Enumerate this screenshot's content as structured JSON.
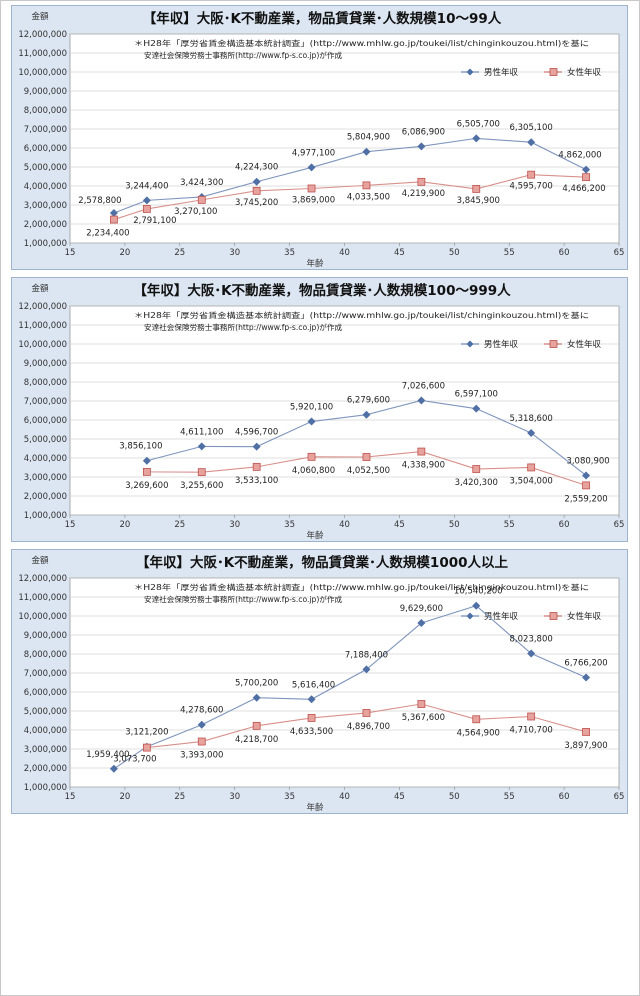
{
  "chart_data": [
    {
      "type": "line",
      "title": "【年収】大阪･K不動産業，物品賃貸業･人数規模10～99人",
      "note_line1": "＊H28年「厚労省賃金構造基本統計調査」(http://www.mhlw.go.jp/toukei/list/chinginkouzou.html)を基に",
      "note_line2": "安達社会保険労務士事務所(http://www.fp-s.co.jp)が作成",
      "xlabel": "年齢",
      "ylabel": "金額",
      "xlim": [
        15,
        65
      ],
      "ylim": [
        1000000,
        12000000
      ],
      "x_ticks": [
        "15",
        "20",
        "25",
        "30",
        "35",
        "40",
        "45",
        "50",
        "55",
        "60",
        "65"
      ],
      "y_ticks": [
        "1,000,000",
        "2,000,000",
        "3,000,000",
        "4,000,000",
        "5,000,000",
        "6,000,000",
        "7,000,000",
        "8,000,000",
        "9,000,000",
        "10,000,000",
        "11,000,000",
        "12,000,000"
      ],
      "legend_position": "top-right",
      "grid": true,
      "series": [
        {
          "name": "男性年収",
          "color": "#4f6fa5",
          "marker": "diamond",
          "x": [
            19,
            22,
            27,
            32,
            37,
            42,
            47,
            52,
            57,
            62
          ],
          "values": [
            2578800,
            3244400,
            3424300,
            4224300,
            4977100,
            5804900,
            6086900,
            6505700,
            6305100,
            4862000
          ],
          "labels": [
            "2,578,800",
            "3,244,400",
            "3,424,300",
            "4,224,300",
            "4,977,100",
            "5,804,900",
            "6,086,900",
            "6,505,700",
            "6,305,100",
            "4,862,000"
          ]
        },
        {
          "name": "女性年収",
          "color": "#c0504d",
          "marker": "square",
          "x": [
            19,
            22,
            27,
            32,
            37,
            42,
            47,
            52,
            57,
            62
          ],
          "values": [
            2234400,
            2791100,
            3270100,
            3745200,
            3869000,
            4033500,
            4219900,
            3845900,
            4595700,
            4466200
          ],
          "labels": [
            "2,234,400",
            "2,791,100",
            "3,270,100",
            "3,745,200",
            "3,869,000",
            "4,033,500",
            "4,219,900",
            "3,845,900",
            "4,595,700",
            "4,466,200"
          ]
        }
      ]
    },
    {
      "type": "line",
      "title": "【年収】大阪･K不動産業，物品賃貸業･人数規模100～999人",
      "note_line1": "＊H28年「厚労省賃金構造基本統計調査」(http://www.mhlw.go.jp/toukei/list/chinginkouzou.html)を基に",
      "note_line2": "安達社会保険労務士事務所(http://www.fp-s.co.jp)が作成",
      "xlabel": "年齢",
      "ylabel": "金額",
      "xlim": [
        15,
        65
      ],
      "ylim": [
        1000000,
        12000000
      ],
      "x_ticks": [
        "15",
        "20",
        "25",
        "30",
        "35",
        "40",
        "45",
        "50",
        "55",
        "60",
        "65"
      ],
      "y_ticks": [
        "1,000,000",
        "2,000,000",
        "3,000,000",
        "4,000,000",
        "5,000,000",
        "6,000,000",
        "7,000,000",
        "8,000,000",
        "9,000,000",
        "10,000,000",
        "11,000,000",
        "12,000,000"
      ],
      "legend_position": "top-right",
      "grid": true,
      "series": [
        {
          "name": "男性年収",
          "color": "#4f6fa5",
          "marker": "diamond",
          "x": [
            22,
            27,
            32,
            37,
            42,
            47,
            52,
            57,
            62
          ],
          "values": [
            3856100,
            4611100,
            4596700,
            5920100,
            6279600,
            7026600,
            6597100,
            5318600,
            3080900
          ],
          "labels": [
            "3,856,100",
            "4,611,100",
            "4,596,700",
            "5,920,100",
            "6,279,600",
            "7,026,600",
            "6,597,100",
            "5,318,600",
            "3,080,900"
          ]
        },
        {
          "name": "女性年収",
          "color": "#c0504d",
          "marker": "square",
          "x": [
            22,
            27,
            32,
            37,
            42,
            47,
            52,
            57,
            62
          ],
          "values": [
            3269600,
            3255600,
            3533100,
            4060800,
            4052500,
            4338900,
            3420300,
            3504000,
            2559200
          ],
          "labels": [
            "3,269,600",
            "3,255,600",
            "3,533,100",
            "4,060,800",
            "4,052,500",
            "4,338,900",
            "3,420,300",
            "3,504,000",
            "2,559,200"
          ]
        }
      ]
    },
    {
      "type": "line",
      "title": "【年収】大阪･K不動産業，物品賃貸業･人数規模1000人以上",
      "note_line1": "＊H28年「厚労省賃金構造基本統計調査」(http://www.mhlw.go.jp/toukei/list/chinginkouzou.html)を基に",
      "note_line2": "安達社会保険労務士事務所(http://www.fp-s.co.jp)が作成",
      "xlabel": "年齢",
      "ylabel": "金額",
      "xlim": [
        15,
        65
      ],
      "ylim": [
        1000000,
        12000000
      ],
      "x_ticks": [
        "15",
        "20",
        "25",
        "30",
        "35",
        "40",
        "45",
        "50",
        "55",
        "60",
        "65"
      ],
      "y_ticks": [
        "1,000,000",
        "2,000,000",
        "3,000,000",
        "4,000,000",
        "5,000,000",
        "6,000,000",
        "7,000,000",
        "8,000,000",
        "9,000,000",
        "10,000,000",
        "11,000,000",
        "12,000,000"
      ],
      "legend_position": "top-right",
      "grid": true,
      "series": [
        {
          "name": "男性年収",
          "color": "#4f6fa5",
          "marker": "diamond",
          "x": [
            19,
            22,
            27,
            32,
            37,
            42,
            47,
            52,
            57,
            62
          ],
          "values": [
            1959400,
            3121200,
            4278600,
            5700200,
            5616400,
            7188400,
            9629600,
            10540200,
            8023800,
            6766200
          ],
          "labels": [
            "1,959,400",
            "3,121,200",
            "4,278,600",
            "5,700,200",
            "5,616,400",
            "7,188,400",
            "9,629,600",
            "10,540,200",
            "8,023,800",
            "6,766,200"
          ]
        },
        {
          "name": "女性年収",
          "color": "#c0504d",
          "marker": "square",
          "x": [
            22,
            27,
            32,
            37,
            42,
            47,
            52,
            57,
            62
          ],
          "values": [
            3073700,
            3393000,
            4218700,
            4633500,
            4896700,
            5367600,
            4564900,
            4710700,
            3897900
          ],
          "labels": [
            "3,073,700",
            "3,393,000",
            "4,218,700",
            "4,633,500",
            "4,896,700",
            "5,367,600",
            "4,564,900",
            "4,710,700",
            "3,897,900"
          ]
        }
      ]
    }
  ]
}
